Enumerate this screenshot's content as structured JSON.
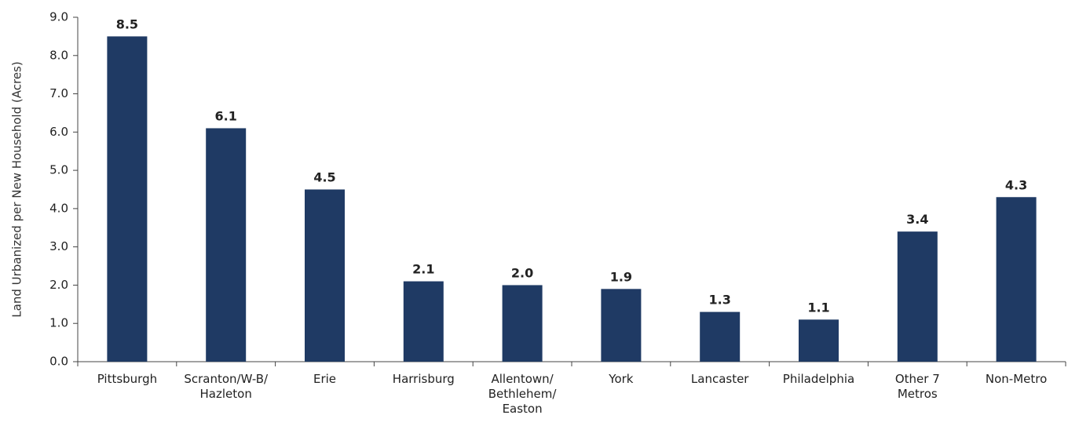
{
  "chart_data": {
    "type": "bar",
    "title": "",
    "xlabel": "",
    "ylabel": "Land Urbanized per New Household (Acres)",
    "ylim": [
      0,
      9
    ],
    "yticks": [
      "0.0",
      "1.0",
      "2.0",
      "3.0",
      "4.0",
      "5.0",
      "6.0",
      "7.0",
      "8.0",
      "9.0"
    ],
    "grid": false,
    "legend": "none",
    "bar_color": "#1f3a64",
    "categories": [
      [
        "Pittsburgh"
      ],
      [
        "Scranton/W-B/",
        "Hazleton"
      ],
      [
        "Erie"
      ],
      [
        "Harrisburg"
      ],
      [
        "Allentown/",
        "Bethlehem/",
        "Easton"
      ],
      [
        "York"
      ],
      [
        "Lancaster"
      ],
      [
        "Philadelphia"
      ],
      [
        "Other 7",
        "Metros"
      ],
      [
        "Non-Metro"
      ]
    ],
    "values": [
      8.5,
      6.1,
      4.5,
      2.1,
      2.0,
      1.9,
      1.3,
      1.1,
      3.4,
      4.3
    ],
    "value_labels": [
      "8.5",
      "6.1",
      "4.5",
      "2.1",
      "2.0",
      "1.9",
      "1.3",
      "1.1",
      "3.4",
      "4.3"
    ]
  }
}
